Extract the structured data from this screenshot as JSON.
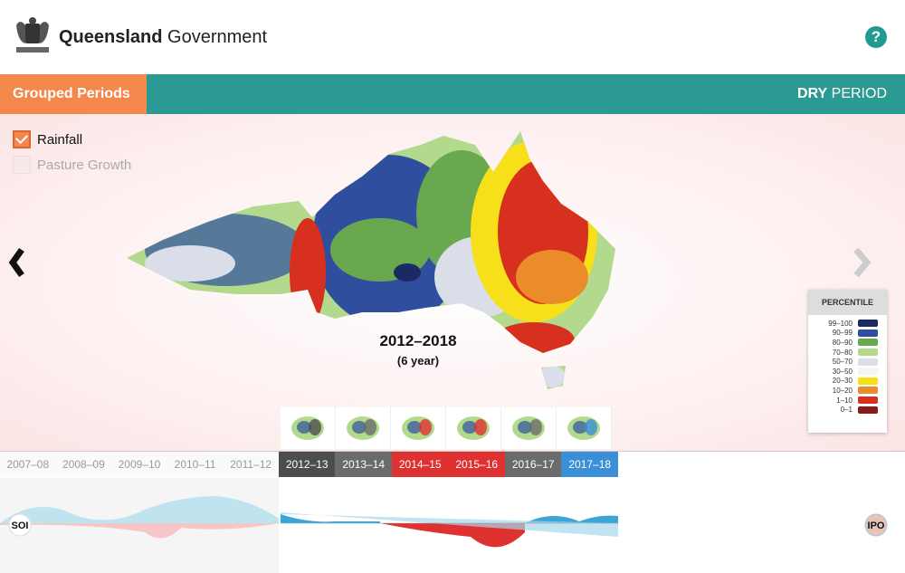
{
  "header": {
    "brand_bold": "Queensland",
    "brand_rest": "Government",
    "help": "?"
  },
  "toolbar": {
    "tab": "Grouped Periods",
    "period_bold": "DRY",
    "period_rest": "PERIOD"
  },
  "layers": [
    {
      "label": "Rainfall",
      "checked": true
    },
    {
      "label": "Pasture Growth",
      "checked": false
    }
  ],
  "map": {
    "title": "2012–2018",
    "subtitle": "(6 year)"
  },
  "legend": {
    "title": "PERCENTILE",
    "items": [
      {
        "label": "99–100",
        "color": "#1c2a63"
      },
      {
        "label": "90–99",
        "color": "#2f4f9e"
      },
      {
        "label": "80–90",
        "color": "#6aa84f"
      },
      {
        "label": "70–80",
        "color": "#b3d98c"
      },
      {
        "label": "50–70",
        "color": "#d9dee8"
      },
      {
        "label": "30–50",
        "color": "#f4f4f4"
      },
      {
        "label": "20–30",
        "color": "#f7e01a"
      },
      {
        "label": "10–20",
        "color": "#ec8b2a"
      },
      {
        "label": "1–10",
        "color": "#d7301f"
      },
      {
        "label": "0–1",
        "color": "#8b1a1a"
      }
    ]
  },
  "timeline": {
    "past": [
      "2007–08",
      "2008–09",
      "2009–10",
      "2010–11",
      "2011–12"
    ],
    "selected": [
      {
        "label": "2012–13",
        "color": "#4d4d4d"
      },
      {
        "label": "2013–14",
        "color": "#6b6b6b"
      },
      {
        "label": "2014–15",
        "color": "#e03131"
      },
      {
        "label": "2015–16",
        "color": "#e03131"
      },
      {
        "label": "2016–17",
        "color": "#6b6b6b"
      },
      {
        "label": "2017–18",
        "color": "#3a8fd6"
      }
    ]
  },
  "indices": {
    "left": "SOI",
    "right": "IPO"
  }
}
